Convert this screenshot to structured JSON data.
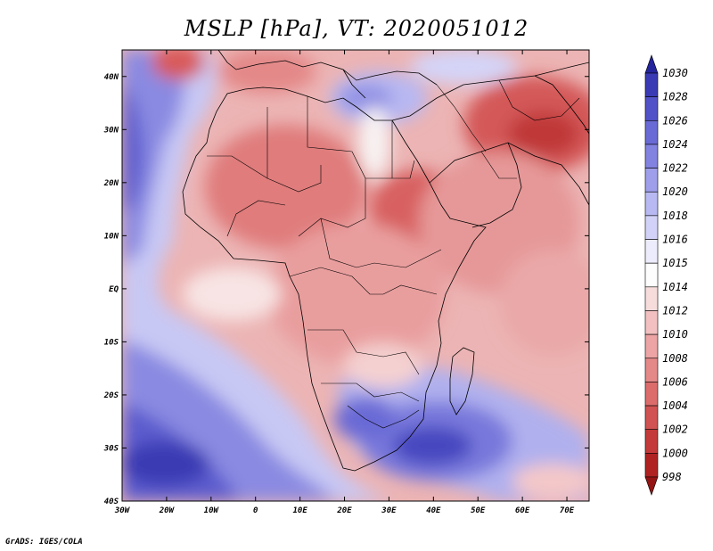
{
  "title": "MSLP [hPa], VT: 2020051012",
  "footer": "GrADS: IGES/COLA",
  "map": {
    "region": "Africa",
    "lon_range": [
      -30,
      75
    ],
    "lat_range": [
      -40,
      45
    ],
    "lon_ticks": [
      "30W",
      "20W",
      "10W",
      "0",
      "10E",
      "20E",
      "30E",
      "40E",
      "50E",
      "60E",
      "70E"
    ],
    "lat_ticks": [
      "40N",
      "30N",
      "20N",
      "10N",
      "EQ",
      "10S",
      "20S",
      "30S",
      "40S"
    ]
  },
  "colorbar": {
    "levels": [
      "1030",
      "1028",
      "1026",
      "1024",
      "1022",
      "1020",
      "1018",
      "1016",
      "1015",
      "1014",
      "1012",
      "1010",
      "1008",
      "1006",
      "1004",
      "1002",
      "1000",
      "998"
    ],
    "colors": [
      "#24249c",
      "#3a3ab4",
      "#5252c8",
      "#6a6ad6",
      "#8282e0",
      "#9e9eea",
      "#b8b8f2",
      "#d2d2f8",
      "#ececfc",
      "#fdfdfd",
      "#f7dcdc",
      "#f2c0c0",
      "#eca4a4",
      "#e48888",
      "#dc6c6c",
      "#d05252",
      "#c43a3a",
      "#b02222",
      "#941414"
    ]
  }
}
